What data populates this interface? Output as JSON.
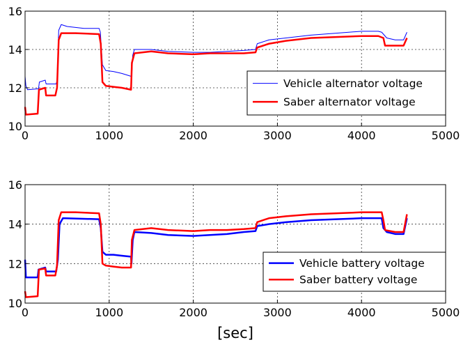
{
  "chart_data": [
    {
      "type": "line",
      "xlim": [
        0,
        5000
      ],
      "ylim": [
        10,
        16
      ],
      "xticks": [
        0,
        1000,
        2000,
        3000,
        4000,
        5000
      ],
      "yticks": [
        10,
        12,
        14,
        16
      ],
      "xtick_labels": [
        "0",
        "1000",
        "2000",
        "3000",
        "4000",
        "5000"
      ],
      "ytick_labels": [
        "10",
        "12",
        "14",
        "16"
      ],
      "grid": true,
      "legend": "center-right",
      "xlabel": "",
      "series": [
        {
          "name": "Vehicle alternator voltage",
          "color": "#0000ff",
          "width": 1,
          "points": [
            [
              0,
              12.6
            ],
            [
              10,
              12.1
            ],
            [
              30,
              11.9
            ],
            [
              160,
              11.95
            ],
            [
              170,
              12.3
            ],
            [
              240,
              12.4
            ],
            [
              250,
              12.2
            ],
            [
              370,
              12.2
            ],
            [
              380,
              12.4
            ],
            [
              400,
              15.0
            ],
            [
              430,
              15.3
            ],
            [
              500,
              15.2
            ],
            [
              600,
              15.15
            ],
            [
              700,
              15.1
            ],
            [
              880,
              15.1
            ],
            [
              895,
              14.9
            ],
            [
              920,
              13.2
            ],
            [
              960,
              12.9
            ],
            [
              1050,
              12.85
            ],
            [
              1150,
              12.75
            ],
            [
              1260,
              12.6
            ],
            [
              1265,
              12.3
            ],
            [
              1280,
              13.7
            ],
            [
              1300,
              14.0
            ],
            [
              1500,
              14.0
            ],
            [
              1700,
              13.9
            ],
            [
              2000,
              13.85
            ],
            [
              2200,
              13.85
            ],
            [
              2400,
              13.9
            ],
            [
              2600,
              13.95
            ],
            [
              2740,
              14.0
            ],
            [
              2760,
              14.3
            ],
            [
              2900,
              14.5
            ],
            [
              3100,
              14.6
            ],
            [
              3400,
              14.75
            ],
            [
              3700,
              14.85
            ],
            [
              4000,
              14.95
            ],
            [
              4200,
              14.95
            ],
            [
              4240,
              14.9
            ],
            [
              4260,
              14.8
            ],
            [
              4300,
              14.6
            ],
            [
              4400,
              14.5
            ],
            [
              4500,
              14.5
            ],
            [
              4540,
              14.9
            ]
          ]
        },
        {
          "name": "Saber alternator voltage",
          "color": "#ff0000",
          "width": 2.5,
          "points": [
            [
              0,
              11.0
            ],
            [
              10,
              10.6
            ],
            [
              150,
              10.65
            ],
            [
              165,
              11.9
            ],
            [
              240,
              12.0
            ],
            [
              250,
              11.6
            ],
            [
              360,
              11.6
            ],
            [
              380,
              12.0
            ],
            [
              400,
              14.5
            ],
            [
              430,
              14.85
            ],
            [
              600,
              14.85
            ],
            [
              880,
              14.8
            ],
            [
              900,
              14.3
            ],
            [
              920,
              12.3
            ],
            [
              960,
              12.1
            ],
            [
              1050,
              12.05
            ],
            [
              1150,
              12.0
            ],
            [
              1260,
              11.9
            ],
            [
              1270,
              13.3
            ],
            [
              1300,
              13.8
            ],
            [
              1500,
              13.9
            ],
            [
              1700,
              13.8
            ],
            [
              2000,
              13.75
            ],
            [
              2200,
              13.8
            ],
            [
              2400,
              13.8
            ],
            [
              2600,
              13.8
            ],
            [
              2740,
              13.85
            ],
            [
              2760,
              14.1
            ],
            [
              2900,
              14.3
            ],
            [
              3100,
              14.45
            ],
            [
              3400,
              14.6
            ],
            [
              3700,
              14.65
            ],
            [
              4000,
              14.7
            ],
            [
              4200,
              14.7
            ],
            [
              4260,
              14.6
            ],
            [
              4280,
              14.2
            ],
            [
              4400,
              14.2
            ],
            [
              4500,
              14.2
            ],
            [
              4540,
              14.6
            ]
          ]
        }
      ]
    },
    {
      "type": "line",
      "xlim": [
        0,
        5000
      ],
      "ylim": [
        10,
        16
      ],
      "xticks": [
        0,
        1000,
        2000,
        3000,
        4000,
        5000
      ],
      "yticks": [
        10,
        12,
        14,
        16
      ],
      "xtick_labels": [
        "0",
        "1000",
        "2000",
        "3000",
        "4000",
        "5000"
      ],
      "ytick_labels": [
        "10",
        "12",
        "14",
        "16"
      ],
      "grid": true,
      "legend": "lower-right",
      "xlabel": "[sec]",
      "series": [
        {
          "name": "Vehicle battery voltage",
          "color": "#0000ff",
          "width": 2.5,
          "points": [
            [
              0,
              12.2
            ],
            [
              10,
              11.3
            ],
            [
              150,
              11.3
            ],
            [
              160,
              11.7
            ],
            [
              240,
              11.8
            ],
            [
              250,
              11.6
            ],
            [
              370,
              11.6
            ],
            [
              390,
              12.2
            ],
            [
              410,
              14.0
            ],
            [
              450,
              14.3
            ],
            [
              880,
              14.25
            ],
            [
              900,
              13.8
            ],
            [
              920,
              12.6
            ],
            [
              960,
              12.45
            ],
            [
              1050,
              12.45
            ],
            [
              1150,
              12.4
            ],
            [
              1260,
              12.35
            ],
            [
              1265,
              12.0
            ],
            [
              1280,
              13.2
            ],
            [
              1300,
              13.6
            ],
            [
              1500,
              13.55
            ],
            [
              1700,
              13.45
            ],
            [
              2000,
              13.4
            ],
            [
              2200,
              13.45
            ],
            [
              2400,
              13.5
            ],
            [
              2600,
              13.6
            ],
            [
              2740,
              13.65
            ],
            [
              2760,
              13.9
            ],
            [
              2900,
              14.0
            ],
            [
              3100,
              14.1
            ],
            [
              3400,
              14.2
            ],
            [
              3700,
              14.25
            ],
            [
              4000,
              14.3
            ],
            [
              4240,
              14.3
            ],
            [
              4260,
              13.8
            ],
            [
              4300,
              13.6
            ],
            [
              4400,
              13.5
            ],
            [
              4500,
              13.5
            ],
            [
              4540,
              14.3
            ]
          ]
        },
        {
          "name": "Saber battery voltage",
          "color": "#ff0000",
          "width": 2.5,
          "points": [
            [
              0,
              10.6
            ],
            [
              10,
              10.3
            ],
            [
              150,
              10.35
            ],
            [
              165,
              11.7
            ],
            [
              240,
              11.75
            ],
            [
              250,
              11.4
            ],
            [
              360,
              11.4
            ],
            [
              380,
              11.9
            ],
            [
              400,
              14.2
            ],
            [
              430,
              14.6
            ],
            [
              600,
              14.6
            ],
            [
              880,
              14.55
            ],
            [
              900,
              14.0
            ],
            [
              920,
              12.0
            ],
            [
              960,
              11.9
            ],
            [
              1050,
              11.85
            ],
            [
              1150,
              11.8
            ],
            [
              1260,
              11.8
            ],
            [
              1270,
              13.2
            ],
            [
              1300,
              13.7
            ],
            [
              1500,
              13.8
            ],
            [
              1700,
              13.7
            ],
            [
              2000,
              13.65
            ],
            [
              2200,
              13.7
            ],
            [
              2400,
              13.7
            ],
            [
              2600,
              13.75
            ],
            [
              2740,
              13.8
            ],
            [
              2760,
              14.1
            ],
            [
              2900,
              14.3
            ],
            [
              3100,
              14.4
            ],
            [
              3400,
              14.5
            ],
            [
              3700,
              14.55
            ],
            [
              4000,
              14.6
            ],
            [
              4240,
              14.6
            ],
            [
              4260,
              14.2
            ],
            [
              4280,
              13.7
            ],
            [
              4400,
              13.6
            ],
            [
              4500,
              13.6
            ],
            [
              4540,
              14.5
            ]
          ]
        }
      ]
    }
  ]
}
